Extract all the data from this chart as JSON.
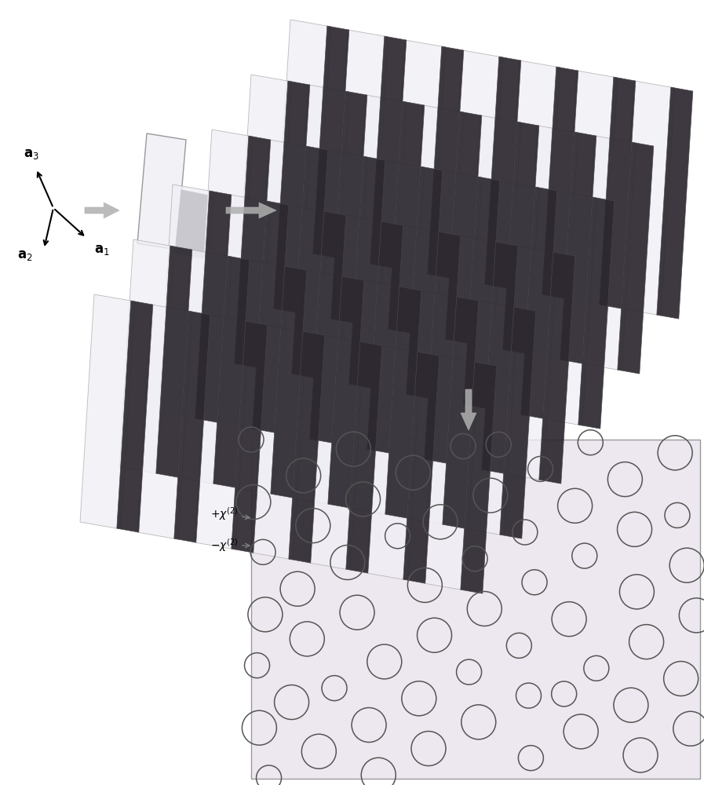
{
  "bg_color": "#ffffff",
  "light_plate_color": "#f0eff5",
  "dark_plate_color": "#2d2830",
  "light_plate_edge": "#aaaaaa",
  "dark_plate_edge": "#444444",
  "arrow_color": "#aaaaaa",
  "circle_edge_color": "#555555",
  "circle_bg_pink": "#f2e8f2",
  "circle_bg_green": "#e8f2e8",
  "rect_bg": "#ede8ef"
}
